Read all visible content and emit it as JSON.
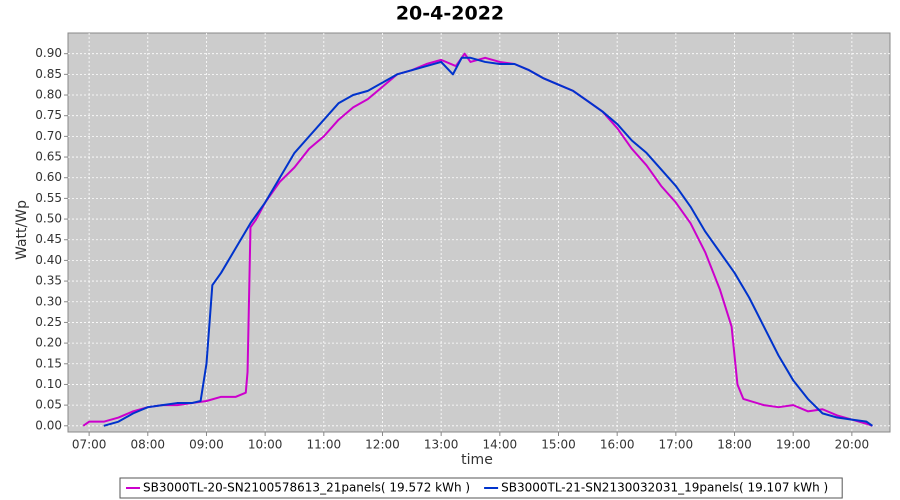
{
  "chart_data": {
    "type": "line",
    "title": "20-4-2022",
    "x_label": "time",
    "y_label": "Watt/Wp",
    "xlim": [
      6.64,
      20.65
    ],
    "ylim": [
      -0.015,
      0.95
    ],
    "grid": true,
    "legend": "bottom",
    "background": "#cccccc",
    "xticks": [
      {
        "value": 7,
        "label": "07:00"
      },
      {
        "value": 8,
        "label": "08:00"
      },
      {
        "value": 9,
        "label": "09:00"
      },
      {
        "value": 10,
        "label": "10:00"
      },
      {
        "value": 11,
        "label": "11:00"
      },
      {
        "value": 12,
        "label": "12:00"
      },
      {
        "value": 13,
        "label": "13:00"
      },
      {
        "value": 14,
        "label": "14:00"
      },
      {
        "value": 15,
        "label": "15:00"
      },
      {
        "value": 16,
        "label": "16:00"
      },
      {
        "value": 17,
        "label": "17:00"
      },
      {
        "value": 18,
        "label": "18:00"
      },
      {
        "value": 19,
        "label": "19:00"
      },
      {
        "value": 20,
        "label": "20:00"
      }
    ],
    "yticks": [
      {
        "value": 0,
        "label": "0.00"
      },
      {
        "value": 0.05,
        "label": "0.05"
      },
      {
        "value": 0.1,
        "label": "0.10"
      },
      {
        "value": 0.15,
        "label": "0.15"
      },
      {
        "value": 0.2,
        "label": "0.20"
      },
      {
        "value": 0.25,
        "label": "0.25"
      },
      {
        "value": 0.3,
        "label": "0.30"
      },
      {
        "value": 0.35,
        "label": "0.35"
      },
      {
        "value": 0.4,
        "label": "0.40"
      },
      {
        "value": 0.45,
        "label": "0.45"
      },
      {
        "value": 0.5,
        "label": "0.50"
      },
      {
        "value": 0.55,
        "label": "0.55"
      },
      {
        "value": 0.6,
        "label": "0.60"
      },
      {
        "value": 0.65,
        "label": "0.65"
      },
      {
        "value": 0.7,
        "label": "0.70"
      },
      {
        "value": 0.75,
        "label": "0.75"
      },
      {
        "value": 0.8,
        "label": "0.80"
      },
      {
        "value": 0.85,
        "label": "0.85"
      },
      {
        "value": 0.9,
        "label": "0.90"
      }
    ],
    "series": [
      {
        "name": "SB3000TL-20-SN2100578613_21panels( 19.572 kWh )",
        "color": "#cc00cc",
        "x": [
          6.9,
          7.0,
          7.25,
          7.5,
          7.75,
          8.0,
          8.25,
          8.5,
          8.75,
          9.0,
          9.25,
          9.5,
          9.67,
          9.7,
          9.75,
          9.85,
          10.0,
          10.25,
          10.5,
          10.75,
          11.0,
          11.25,
          11.5,
          11.75,
          12.0,
          12.25,
          12.5,
          12.75,
          13.0,
          13.25,
          13.4,
          13.5,
          13.75,
          14.0,
          14.25,
          14.5,
          14.75,
          15.0,
          15.25,
          15.5,
          15.75,
          16.0,
          16.25,
          16.5,
          16.75,
          17.0,
          17.25,
          17.5,
          17.75,
          17.95,
          18.05,
          18.15,
          18.5,
          18.75,
          19.0,
          19.25,
          19.5,
          19.75,
          20.0,
          20.25,
          20.35
        ],
        "values": [
          0.0,
          0.01,
          0.01,
          0.02,
          0.035,
          0.045,
          0.05,
          0.05,
          0.055,
          0.06,
          0.07,
          0.07,
          0.08,
          0.13,
          0.48,
          0.5,
          0.54,
          0.59,
          0.625,
          0.67,
          0.7,
          0.74,
          0.77,
          0.79,
          0.82,
          0.85,
          0.86,
          0.875,
          0.885,
          0.87,
          0.9,
          0.88,
          0.89,
          0.88,
          0.875,
          0.86,
          0.84,
          0.825,
          0.81,
          0.785,
          0.76,
          0.72,
          0.67,
          0.63,
          0.58,
          0.54,
          0.49,
          0.42,
          0.33,
          0.24,
          0.1,
          0.065,
          0.05,
          0.045,
          0.05,
          0.035,
          0.04,
          0.025,
          0.015,
          0.005,
          0.0
        ]
      },
      {
        "name": "SB3000TL-21-SN2130032031_19panels( 19.107 kWh )",
        "color": "#0033cc",
        "x": [
          7.25,
          7.5,
          7.75,
          8.0,
          8.25,
          8.5,
          8.75,
          8.9,
          9.0,
          9.1,
          9.25,
          9.5,
          9.75,
          10.0,
          10.25,
          10.5,
          10.75,
          11.0,
          11.25,
          11.5,
          11.75,
          12.0,
          12.25,
          12.5,
          12.75,
          13.0,
          13.2,
          13.35,
          13.5,
          13.75,
          14.0,
          14.25,
          14.5,
          14.75,
          15.0,
          15.25,
          15.5,
          15.75,
          16.0,
          16.25,
          16.5,
          16.75,
          17.0,
          17.25,
          17.5,
          17.75,
          18.0,
          18.25,
          18.5,
          18.75,
          19.0,
          19.25,
          19.5,
          19.75,
          20.0,
          20.25,
          20.35
        ],
        "values": [
          0.0,
          0.01,
          0.03,
          0.045,
          0.05,
          0.055,
          0.055,
          0.06,
          0.15,
          0.34,
          0.37,
          0.43,
          0.49,
          0.54,
          0.6,
          0.66,
          0.7,
          0.74,
          0.78,
          0.8,
          0.81,
          0.83,
          0.85,
          0.86,
          0.87,
          0.88,
          0.85,
          0.89,
          0.89,
          0.88,
          0.875,
          0.875,
          0.86,
          0.84,
          0.825,
          0.81,
          0.785,
          0.76,
          0.73,
          0.69,
          0.66,
          0.62,
          0.58,
          0.53,
          0.47,
          0.42,
          0.37,
          0.31,
          0.24,
          0.17,
          0.11,
          0.065,
          0.03,
          0.02,
          0.015,
          0.01,
          0.0
        ]
      }
    ]
  }
}
